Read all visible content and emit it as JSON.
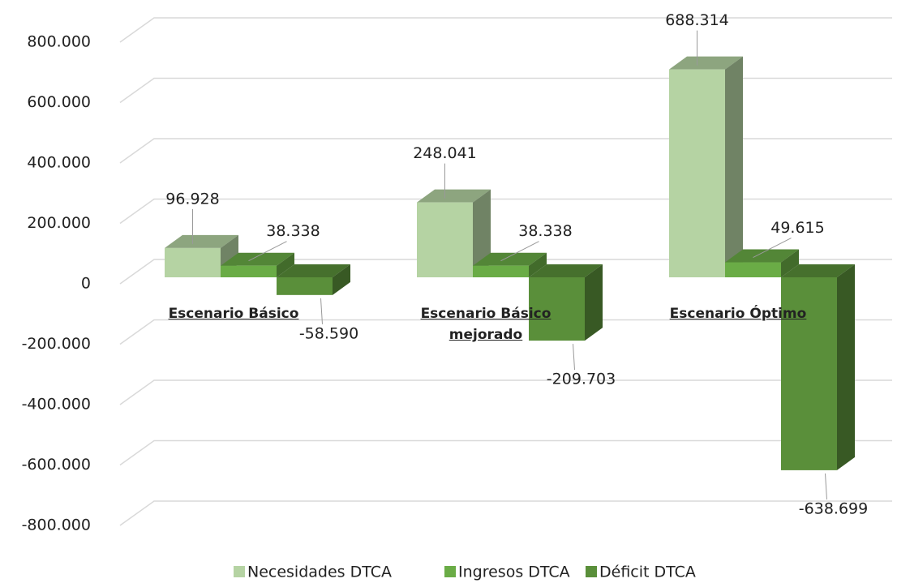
{
  "chart_data": {
    "type": "bar3d",
    "categories": [
      "Escenario Básico",
      "Escenario Básico mejorado",
      "Escenario Óptimo"
    ],
    "series": [
      {
        "name": "Necesidades DTCA",
        "color": "#b5d3a3",
        "values": [
          96928,
          248041,
          688314
        ],
        "value_labels": [
          "96.928",
          "248.041",
          "688.314"
        ]
      },
      {
        "name": "Ingresos DTCA",
        "color": "#6aac46",
        "values": [
          38338,
          38338,
          49615
        ],
        "value_labels": [
          "38.338",
          "38.338",
          "49.615"
        ]
      },
      {
        "name": "Déficit DTCA",
        "color": "#5a8f3a",
        "values": [
          -58590,
          -209703,
          -638699
        ],
        "value_labels": [
          "-58.590",
          "-209.703",
          "-638.699"
        ]
      }
    ],
    "ylim": [
      -800000,
      800000
    ],
    "yticks": [
      {
        "value": -800000,
        "label": "-800.000"
      },
      {
        "value": -600000,
        "label": "-600.000"
      },
      {
        "value": -400000,
        "label": "-400.000"
      },
      {
        "value": -200000,
        "label": "-200.000"
      },
      0,
      {
        "value": 200000,
        "label": "200.000"
      },
      {
        "value": 400000,
        "label": "400.000"
      },
      {
        "value": 600000,
        "label": "600.000"
      },
      {
        "value": 800000,
        "label": "800.000"
      }
    ],
    "grid": true,
    "legend": "bottom"
  }
}
